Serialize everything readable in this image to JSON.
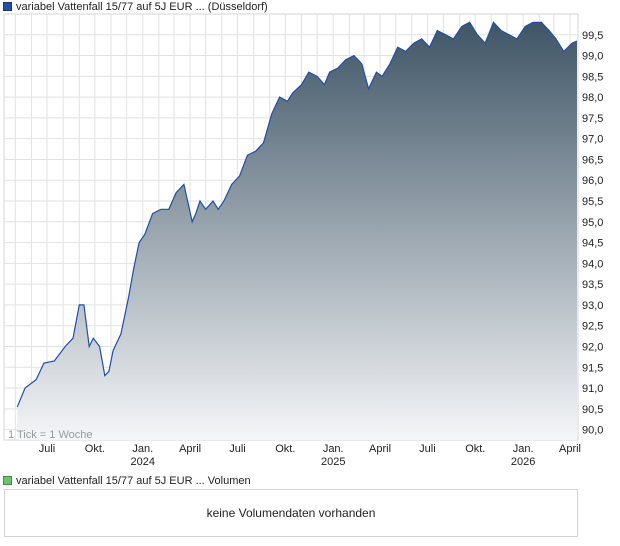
{
  "legend": {
    "price_label": "variabel Vattenfall 15/77 auf 5J EUR ... (Düsseldorf)",
    "volume_label": "variabel Vattenfall 15/77 auf 5J EUR ... Volumen"
  },
  "tick_note": "1 Tick = 1 Woche",
  "volume": {
    "empty_text": "keine Volumendaten vorhanden"
  },
  "colors": {
    "line": "#1f4fa6",
    "fill_top": "#3f5566",
    "fill_bottom": "#f5f6f8",
    "grid": "#e2e2e2"
  },
  "chart_data": {
    "type": "area",
    "title": "",
    "xlabel": "",
    "ylabel": "",
    "ylim": [
      89.75,
      100.0
    ],
    "y_ticks": [
      "90,0",
      "90,5",
      "91,0",
      "91,5",
      "92,0",
      "92,5",
      "93,0",
      "93,5",
      "94,0",
      "94,5",
      "95,0",
      "95,5",
      "96,0",
      "96,5",
      "97,0",
      "97,5",
      "98,0",
      "98,5",
      "99,0",
      "99,5"
    ],
    "x_ticks": [
      {
        "label": "Juli",
        "year": ""
      },
      {
        "label": "Okt.",
        "year": ""
      },
      {
        "label": "Jan.",
        "year": "2024"
      },
      {
        "label": "April",
        "year": ""
      },
      {
        "label": "Juli",
        "year": ""
      },
      {
        "label": "Okt.",
        "year": ""
      },
      {
        "label": "Jan.",
        "year": "2025"
      },
      {
        "label": "April",
        "year": ""
      },
      {
        "label": "Juli",
        "year": ""
      },
      {
        "label": "Okt.",
        "year": ""
      },
      {
        "label": "Jan.",
        "year": "2026"
      },
      {
        "label": "April",
        "year": ""
      }
    ],
    "grid": true,
    "series": [
      {
        "x": [
          "2023-05-05",
          "2023-05-20",
          "2023-06-10",
          "2023-06-25",
          "2023-07-15",
          "2023-08-05",
          "2023-08-20",
          "2023-09-01",
          "2023-09-10",
          "2023-09-20",
          "2023-09-28",
          "2023-10-10",
          "2023-10-20",
          "2023-10-28",
          "2023-11-05",
          "2023-11-20",
          "2023-12-05",
          "2023-12-15",
          "2023-12-25",
          "2024-01-05",
          "2024-01-20",
          "2024-02-05",
          "2024-02-20",
          "2024-03-05",
          "2024-03-20",
          "2024-04-05",
          "2024-04-12",
          "2024-04-20",
          "2024-05-01",
          "2024-05-15",
          "2024-05-25",
          "2024-06-05",
          "2024-06-20",
          "2024-07-05",
          "2024-07-20",
          "2024-08-05",
          "2024-08-20",
          "2024-09-05",
          "2024-09-20",
          "2024-10-05",
          "2024-10-15",
          "2024-11-01",
          "2024-11-15",
          "2024-12-01",
          "2024-12-15",
          "2024-12-25",
          "2025-01-10",
          "2025-01-25",
          "2025-02-10",
          "2025-02-25",
          "2025-03-10",
          "2025-03-25",
          "2025-04-05",
          "2025-04-20",
          "2025-05-05",
          "2025-05-20",
          "2025-06-05",
          "2025-06-20",
          "2025-07-05",
          "2025-07-20",
          "2025-08-05",
          "2025-08-20",
          "2025-09-05",
          "2025-09-20",
          "2025-10-05",
          "2025-10-20",
          "2025-11-05",
          "2025-11-20",
          "2025-12-05",
          "2025-12-20",
          "2026-01-05",
          "2026-01-20",
          "2026-02-05",
          "2026-02-20",
          "2026-03-05",
          "2026-03-20",
          "2026-04-05",
          "2026-04-15"
        ],
        "y": [
          90.55,
          91.0,
          91.2,
          91.6,
          91.65,
          92.0,
          92.2,
          93.0,
          93.0,
          92.0,
          92.2,
          92.0,
          91.3,
          91.4,
          91.9,
          92.3,
          93.2,
          93.9,
          94.5,
          94.7,
          95.2,
          95.3,
          95.3,
          95.7,
          95.9,
          95.0,
          95.2,
          95.5,
          95.3,
          95.5,
          95.3,
          95.5,
          95.9,
          96.1,
          96.6,
          96.7,
          96.9,
          97.6,
          98.0,
          97.9,
          98.1,
          98.3,
          98.6,
          98.5,
          98.3,
          98.6,
          98.7,
          98.9,
          99.0,
          98.8,
          98.2,
          98.6,
          98.5,
          98.8,
          99.2,
          99.1,
          99.3,
          99.4,
          99.2,
          99.6,
          99.5,
          99.4,
          99.7,
          99.8,
          99.5,
          99.3,
          99.8,
          99.6,
          99.5,
          99.4,
          99.7,
          99.8,
          99.8,
          99.6,
          99.4,
          99.1,
          99.3,
          99.35
        ]
      }
    ]
  }
}
